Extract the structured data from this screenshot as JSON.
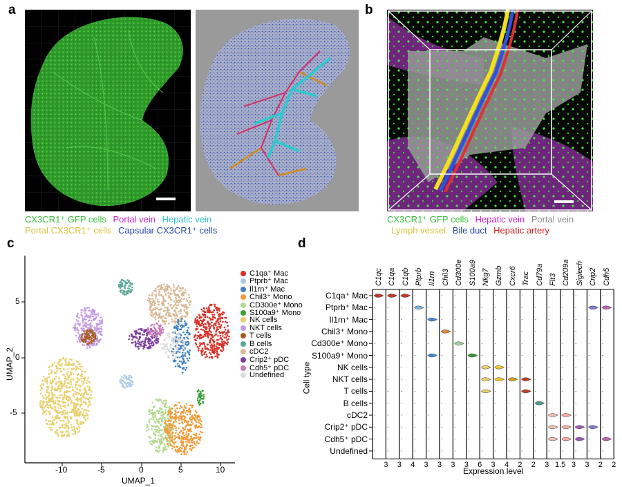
{
  "panels": {
    "a": {
      "label": "a",
      "legend": [
        [
          {
            "text": "CX3CR1⁺ GFP cells",
            "color": "#39c039"
          },
          {
            "text": "Portal vein",
            "color": "#d020d0"
          },
          {
            "text": "Hepatic vein",
            "color": "#2ec4d6"
          }
        ],
        [
          {
            "text": "Portal CX3CR1⁺ cells",
            "color": "#d8c23a"
          },
          {
            "text": "Capsular CX3CR1⁺ cells",
            "color": "#2846b0"
          }
        ]
      ]
    },
    "b": {
      "label": "b",
      "legend": [
        [
          {
            "text": "CX3CR1⁺ GFP cells",
            "color": "#39c039"
          },
          {
            "text": "Hepatic vein",
            "color": "#d020d0"
          },
          {
            "text": "Portal vein",
            "color": "#8a8a8a"
          }
        ],
        [
          {
            "text": "Lymph vessel",
            "color": "#d8c23a"
          },
          {
            "text": "Bile duct",
            "color": "#2846b0"
          },
          {
            "text": "Hepatic artery",
            "color": "#d02020"
          }
        ]
      ]
    },
    "c": {
      "label": "c",
      "xlabel": "UMAP_1",
      "ylabel": "UMAP_2",
      "xticks": [
        "-10",
        "-5",
        "0",
        "5",
        "10"
      ],
      "yticks": [
        "5",
        "0",
        "-5"
      ],
      "legend": [
        {
          "name": "C1qa⁺ Mac",
          "color": "#d62f26"
        },
        {
          "name": "Ptprb⁺ Mac",
          "color": "#a9c9e6"
        },
        {
          "name": "Il1rn⁺ Mac",
          "color": "#3f80bd"
        },
        {
          "name": "Chil3⁺ Mono",
          "color": "#f29a38"
        },
        {
          "name": "CD300e⁺ Mono",
          "color": "#b5d98f"
        },
        {
          "name": "S100a9⁺ Mono",
          "color": "#3aa03a"
        },
        {
          "name": "NK cells",
          "color": "#e8d06e"
        },
        {
          "name": "NKT cells",
          "color": "#c39be0"
        },
        {
          "name": "T cells",
          "color": "#a85a22"
        },
        {
          "name": "B cells",
          "color": "#5aa897"
        },
        {
          "name": "cDC2",
          "color": "#d9b894"
        },
        {
          "name": "Crip2⁺ pDC",
          "color": "#7d3d9f"
        },
        {
          "name": "Cdh5⁺ pDC",
          "color": "#c77bb6"
        },
        {
          "name": "Undefined",
          "color": "#dddddd"
        }
      ]
    },
    "d": {
      "label": "d",
      "ylabel": "Cell type",
      "xlabel": "Expression level",
      "genes": [
        "C1qc",
        "C1qa",
        "C1qb",
        "Ptprb",
        "Il1rn",
        "Chil3",
        "Cd300e",
        "S100a9",
        "Nkg7",
        "Gzmb",
        "Cxcr6",
        "Trac",
        "Cd79a",
        "Flt3",
        "Cd209a",
        "Siglech",
        "Crip2",
        "Cdh5"
      ],
      "max_levels": [
        "3",
        "3",
        "4",
        "3",
        "3",
        "3",
        "3",
        "6",
        "3",
        "4",
        "2",
        "2",
        "3",
        "1.5",
        "3",
        "3",
        "2",
        "2"
      ],
      "cell_types": [
        "C1qa⁺ Mac",
        "Ptprb⁺ Mac",
        "Il1rn⁺ Mac",
        "Chil3⁺ Mono",
        "Cd300e⁺ Mono",
        "S100a9⁺ Mono",
        "NK cells",
        "NKT cells",
        "T cells",
        "B cells",
        "cDC2",
        "Crip2⁺ pDC",
        "Cdh5⁺ pDC",
        "Undefined"
      ],
      "colors": [
        "#d62f26",
        "#a9c9e6",
        "#3f80bd",
        "#f29a38",
        "#b5d98f",
        "#3aa03a",
        "#e8d06e",
        "#c39be0",
        "#a85a22",
        "#5aa897",
        "#d9b894",
        "#7d3d9f",
        "#c77bb6",
        "#dddddd"
      ],
      "violin_colors": [
        "#c0392b",
        "#c0392b",
        "#c0392b",
        "#7fb6e0",
        "#4a8fd0",
        "#e08a30",
        "#9fd39f",
        "#3a9a3a",
        "#e8d06e",
        "#f0c828",
        "#d4a020",
        "#c04020",
        "#4aa090",
        "#f0c0b0",
        "#f2b0a0",
        "#9b59b6",
        "#7d7dd0",
        "#c062b0"
      ],
      "chart_data": {
        "type": "violin",
        "high_expression": [
          {
            "cell_type": "C1qa⁺ Mac",
            "genes": [
              "C1qc",
              "C1qa",
              "C1qb"
            ]
          },
          {
            "cell_type": "Ptprb⁺ Mac",
            "genes": [
              "Ptprb",
              "Crip2",
              "Cdh5"
            ]
          },
          {
            "cell_type": "Il1rn⁺ Mac",
            "genes": [
              "Il1rn"
            ]
          },
          {
            "cell_type": "Chil3⁺ Mono",
            "genes": [
              "Chil3"
            ]
          },
          {
            "cell_type": "Cd300e⁺ Mono",
            "genes": [
              "Cd300e"
            ]
          },
          {
            "cell_type": "S100a9⁺ Mono",
            "genes": [
              "Il1rn",
              "S100a9"
            ]
          },
          {
            "cell_type": "NK cells",
            "genes": [
              "Nkg7",
              "Gzmb"
            ]
          },
          {
            "cell_type": "NKT cells",
            "genes": [
              "Nkg7",
              "Gzmb",
              "Cxcr6",
              "Trac"
            ]
          },
          {
            "cell_type": "T cells",
            "genes": [
              "Nkg7",
              "Trac"
            ]
          },
          {
            "cell_type": "B cells",
            "genes": [
              "Cd79a"
            ]
          },
          {
            "cell_type": "cDC2",
            "genes": [
              "Flt3",
              "Cd209a"
            ]
          },
          {
            "cell_type": "Crip2⁺ pDC",
            "genes": [
              "Flt3",
              "Cd209a",
              "Siglech",
              "Crip2"
            ]
          },
          {
            "cell_type": "Cdh5⁺ pDC",
            "genes": [
              "Flt3",
              "Cd209a",
              "Siglech",
              "Cdh5"
            ]
          },
          {
            "cell_type": "Undefined",
            "genes": []
          }
        ]
      }
    }
  }
}
